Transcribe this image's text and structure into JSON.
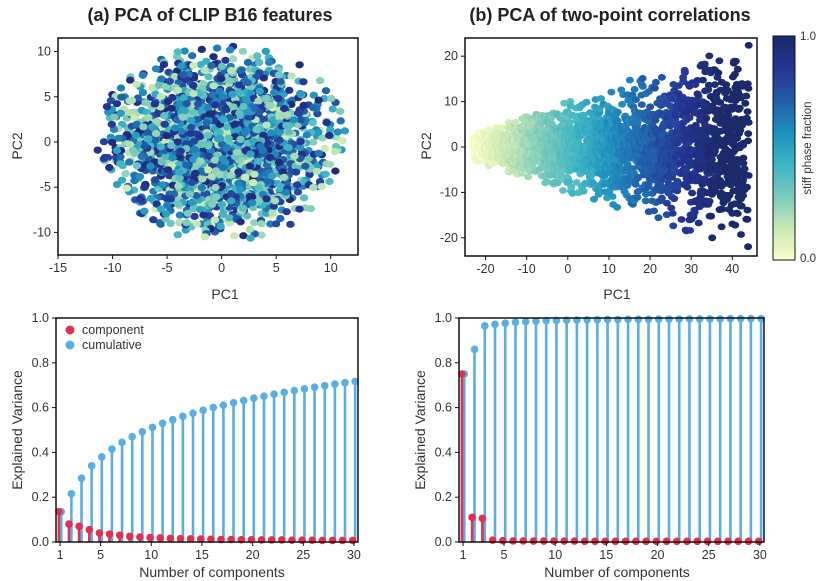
{
  "chart_data": [
    {
      "panel": "a",
      "type": "scatter",
      "title": "(a) PCA of CLIP B16 features",
      "xlabel": "PC1",
      "ylabel": "PC2",
      "xlim": [
        -15,
        12.5
      ],
      "ylim": [
        -12.5,
        11.5
      ],
      "xticks": [
        -15,
        -10,
        -5,
        0,
        5,
        10
      ],
      "yticks": [
        -10,
        -5,
        0,
        5,
        10
      ],
      "point_cloud": {
        "center": [
          0,
          0
        ],
        "spread": [
          11,
          10.5
        ],
        "count": 2400,
        "color_mapping": "random stiff phase fraction"
      }
    },
    {
      "panel": "b",
      "type": "scatter",
      "title": "(b) PCA of two-point correlations",
      "xlabel": "PC1",
      "ylabel": "PC2",
      "xlim": [
        -25,
        46
      ],
      "ylim": [
        -24,
        24
      ],
      "xticks": [
        -20,
        -10,
        0,
        10,
        20,
        30,
        40
      ],
      "yticks": [
        -20,
        -10,
        0,
        10,
        20
      ],
      "point_cloud": {
        "x_range": [
          -23,
          44
        ],
        "count": 2600,
        "color_mapping": "increases with PC1"
      },
      "colorbar": {
        "label": "stiff phase fraction",
        "min_label": "0.0",
        "max_label": "1.0",
        "colors": [
          "#fdfdc8",
          "#c9e9b4",
          "#7dcbbb",
          "#41b6c4",
          "#1f8fbf",
          "#225ea8",
          "#253494",
          "#1b2a6b"
        ]
      }
    },
    {
      "panel": "c",
      "type": "bar",
      "xlabel": "Number of components",
      "ylabel": "Explained Variance",
      "xlim": [
        0.6,
        30.4
      ],
      "ylim": [
        0,
        1.0
      ],
      "xticks": [
        1,
        5,
        10,
        15,
        20,
        25,
        30
      ],
      "yticks": [
        0.0,
        0.2,
        0.4,
        0.6,
        0.8,
        1.0
      ],
      "legend": [
        "component",
        "cumulative"
      ],
      "legend_position": "top-left",
      "component_color": "#e2314d",
      "cumulative_color": "#5aaee2",
      "x": [
        1,
        2,
        3,
        4,
        5,
        6,
        7,
        8,
        9,
        10,
        11,
        12,
        13,
        14,
        15,
        16,
        17,
        18,
        19,
        20,
        21,
        22,
        23,
        24,
        25,
        26,
        27,
        28,
        29,
        30
      ],
      "series": [
        {
          "name": "component",
          "values": [
            0.135,
            0.08,
            0.07,
            0.055,
            0.04,
            0.035,
            0.03,
            0.025,
            0.022,
            0.02,
            0.018,
            0.016,
            0.015,
            0.014,
            0.013,
            0.012,
            0.011,
            0.011,
            0.01,
            0.01,
            0.009,
            0.009,
            0.009,
            0.008,
            0.008,
            0.008,
            0.007,
            0.007,
            0.007,
            0.007
          ]
        },
        {
          "name": "cumulative",
          "values": [
            0.135,
            0.215,
            0.285,
            0.34,
            0.38,
            0.415,
            0.445,
            0.47,
            0.492,
            0.512,
            0.53,
            0.546,
            0.561,
            0.575,
            0.588,
            0.6,
            0.611,
            0.622,
            0.632,
            0.642,
            0.651,
            0.66,
            0.668,
            0.676,
            0.684,
            0.691,
            0.698,
            0.705,
            0.711,
            0.717
          ]
        }
      ]
    },
    {
      "panel": "d",
      "type": "bar",
      "xlabel": "Number of components",
      "ylabel": "Explained Variance",
      "xlim": [
        0.6,
        30.4
      ],
      "ylim": [
        0,
        1.0
      ],
      "xticks": [
        1,
        5,
        10,
        15,
        20,
        25,
        30
      ],
      "yticks": [
        0.0,
        0.2,
        0.4,
        0.6,
        0.8,
        1.0
      ],
      "component_color": "#e2314d",
      "cumulative_color": "#5aaee2",
      "x": [
        1,
        2,
        3,
        4,
        5,
        6,
        7,
        8,
        9,
        10,
        11,
        12,
        13,
        14,
        15,
        16,
        17,
        18,
        19,
        20,
        21,
        22,
        23,
        24,
        25,
        26,
        27,
        28,
        29,
        30
      ],
      "series": [
        {
          "name": "component",
          "values": [
            0.75,
            0.11,
            0.105,
            0.008,
            0.006,
            0.005,
            0.005,
            0.004,
            0.004,
            0.004,
            0.004,
            0.004,
            0.003,
            0.003,
            0.003,
            0.003,
            0.003,
            0.003,
            0.003,
            0.003,
            0.003,
            0.003,
            0.003,
            0.003,
            0.003,
            0.003,
            0.003,
            0.003,
            0.003,
            0.003
          ]
        },
        {
          "name": "cumulative",
          "values": [
            0.75,
            0.86,
            0.965,
            0.972,
            0.977,
            0.981,
            0.984,
            0.986,
            0.988,
            0.989,
            0.99,
            0.991,
            0.992,
            0.992,
            0.993,
            0.993,
            0.994,
            0.994,
            0.994,
            0.995,
            0.995,
            0.995,
            0.996,
            0.996,
            0.996,
            0.996,
            0.997,
            0.997,
            0.997,
            0.997
          ]
        }
      ]
    }
  ]
}
